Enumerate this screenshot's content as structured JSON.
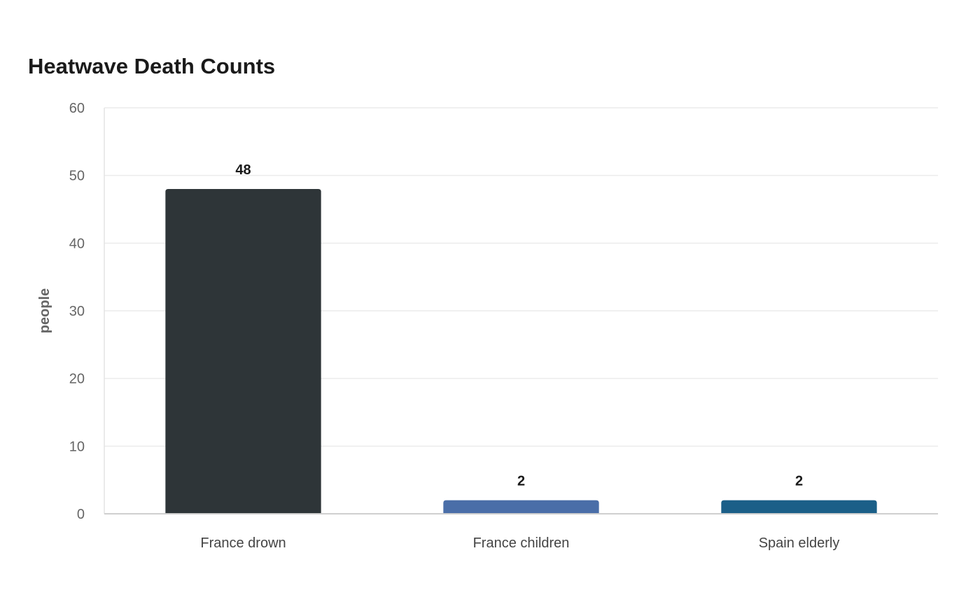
{
  "chart_data": {
    "type": "bar",
    "title": "Heatwave Death Counts",
    "xlabel": "",
    "ylabel": "people",
    "categories": [
      "France drown",
      "France children",
      "Spain elderly"
    ],
    "values": [
      48,
      2,
      2
    ],
    "data_labels": [
      "48",
      "2",
      "2"
    ],
    "bar_colors": [
      "#2e3538",
      "#4a6ea8",
      "#1b5f88"
    ],
    "ylim": [
      0,
      60
    ],
    "yticks": [
      0,
      10,
      20,
      30,
      40,
      50,
      60
    ],
    "ytick_labels": [
      "0",
      "10",
      "20",
      "30",
      "40",
      "50",
      "60"
    ],
    "grid": true,
    "legend": "none"
  }
}
